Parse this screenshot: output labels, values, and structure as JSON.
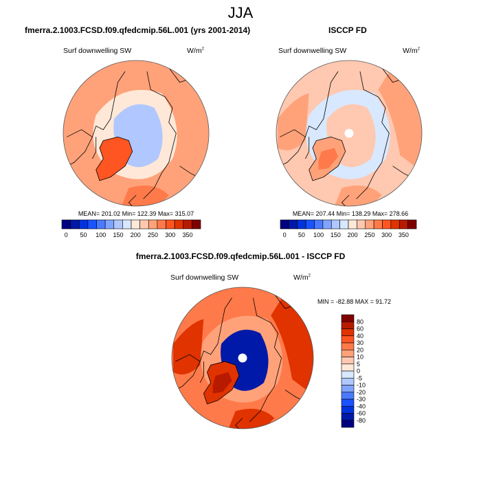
{
  "figure": {
    "title": "JJA"
  },
  "chart_data": [
    {
      "type": "heatmap",
      "projection": "north-polar-stereographic",
      "title": "fmerra.2.1003.FCSD.f09.qfedcmip.56L.001 (yrs 2001-2014)",
      "subtitle": "Surf downwelling SW",
      "units": "W/m",
      "units_exp": "2",
      "stats": {
        "mean": 201.02,
        "min": 122.39,
        "max": 315.07
      },
      "stats_text": "MEAN= 201.02  Min= 122.39  Max= 315.07",
      "colorbar": {
        "orientation": "horizontal",
        "levels": [
          25,
          50,
          75,
          100,
          125,
          150,
          175,
          200,
          225,
          250,
          275,
          300,
          325,
          350,
          375
        ],
        "tick_labels": [
          "0",
          "50",
          "100",
          "150",
          "200",
          "250",
          "300",
          "350"
        ],
        "colors": [
          "#000080",
          "#0019a8",
          "#0033dd",
          "#1a53ff",
          "#4a7aff",
          "#7fa4ff",
          "#b0c8ff",
          "#d8e8ff",
          "#ffe8d8",
          "#ffc8b0",
          "#ffa27a",
          "#ff7a4a",
          "#ff5522",
          "#e03300",
          "#b81a00",
          "#800000"
        ]
      },
      "regions_summary": {
        "arctic_ocean": 165,
        "greenland_interior": 300,
        "subpolar_ocean": 210,
        "mid_latitude_land": 250
      }
    },
    {
      "type": "heatmap",
      "projection": "north-polar-stereographic",
      "title": "ISCCP FD",
      "subtitle": "Surf downwelling SW",
      "units": "W/m",
      "units_exp": "2",
      "stats": {
        "mean": 207.44,
        "min": 138.29,
        "max": 278.66
      },
      "stats_text": "MEAN= 207.44  Min= 138.29  Max= 278.66",
      "colorbar": {
        "orientation": "horizontal",
        "levels": [
          25,
          50,
          75,
          100,
          125,
          150,
          175,
          200,
          225,
          250,
          275,
          300,
          325,
          350,
          375
        ],
        "tick_labels": [
          "0",
          "50",
          "100",
          "150",
          "200",
          "250",
          "300",
          "350"
        ],
        "colors": [
          "#000080",
          "#0019a8",
          "#0033dd",
          "#1a53ff",
          "#4a7aff",
          "#7fa4ff",
          "#b0c8ff",
          "#d8e8ff",
          "#ffe8d8",
          "#ffc8b0",
          "#ffa27a",
          "#ff7a4a",
          "#ff5522",
          "#e03300",
          "#b81a00",
          "#800000"
        ]
      },
      "regions_summary": {
        "arctic_ocean": 240,
        "greenland_interior": 265,
        "subpolar_ocean": 190,
        "mid_latitude_land": 230
      },
      "missing_pole": true
    },
    {
      "type": "heatmap",
      "projection": "north-polar-stereographic",
      "title": "fmerra.2.1003.FCSD.f09.qfedcmip.56L.001 - ISCCP FD",
      "subtitle": "Surf downwelling SW",
      "units": "W/m",
      "units_exp": "2",
      "stats": {
        "min": -82.88,
        "max": 91.72
      },
      "stats_text": "MIN = -82.88 MAX =  91.72",
      "colorbar": {
        "orientation": "vertical",
        "levels": [
          -80,
          -60,
          -40,
          -30,
          -20,
          -10,
          -5,
          0,
          5,
          10,
          20,
          30,
          40,
          60,
          80
        ],
        "tick_labels": [
          "80",
          "60",
          "40",
          "30",
          "20",
          "10",
          "5",
          "0",
          "-5",
          "-10",
          "-20",
          "-30",
          "-40",
          "-60",
          "-80"
        ],
        "colors_top_to_bottom": [
          "#800000",
          "#b81a00",
          "#e03300",
          "#ff5522",
          "#ff7a4a",
          "#ffa27a",
          "#ffc8b0",
          "#ffe8d8",
          "#d8e8ff",
          "#b0c8ff",
          "#7fa4ff",
          "#4a7aff",
          "#1a53ff",
          "#0033dd",
          "#0019a8",
          "#000080"
        ]
      },
      "regions_summary": {
        "arctic_ocean": -65,
        "greenland_interior": 50,
        "subpolar_ocean": 10,
        "mid_latitude_land": 25
      },
      "missing_pole": true
    }
  ]
}
